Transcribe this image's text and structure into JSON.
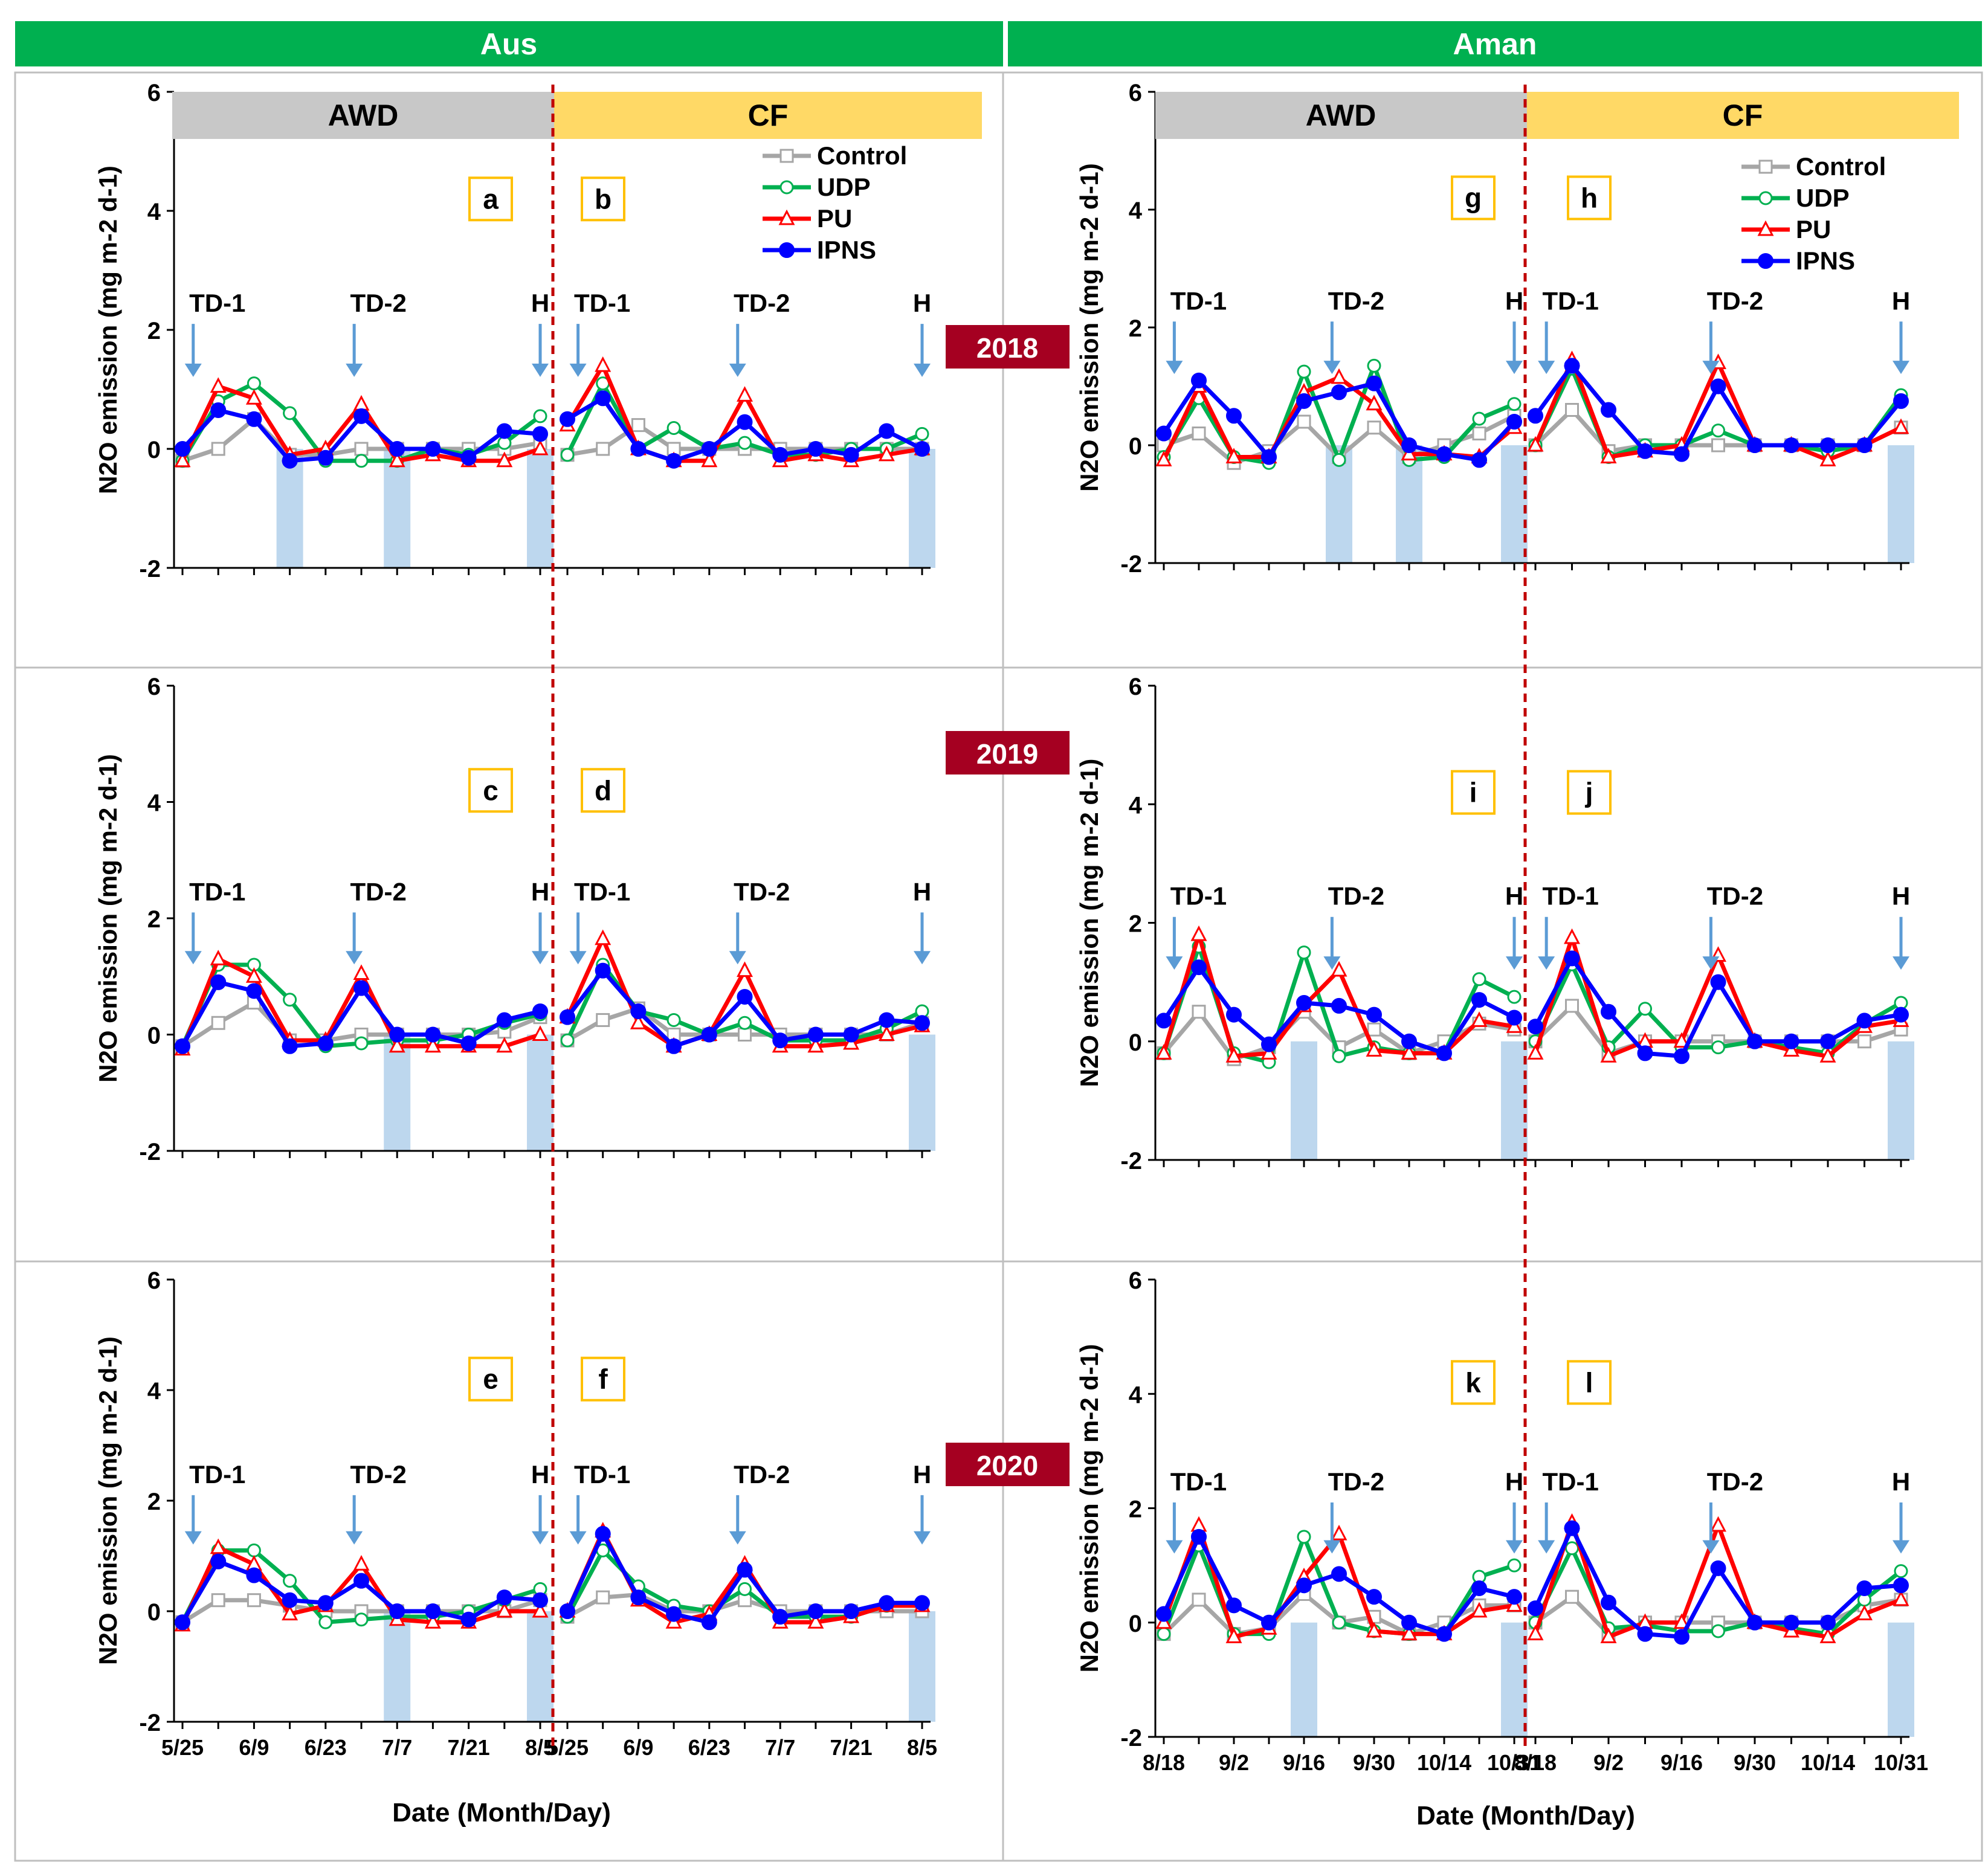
{
  "headers": {
    "aus": "Aus",
    "aman": "Aman"
  },
  "colors": {
    "header_green": "#00b050",
    "awd_gray": "#c8c8c8",
    "cf_yellow": "#ffd966",
    "year_red": "#a50021",
    "arrow_blue": "#5b9bd5",
    "harvest_bar": "#bdd7ee",
    "divider_red": "#c00000",
    "panel_label_border": "#ffc000"
  },
  "water_regimes": {
    "awd": "AWD",
    "cf": "CF"
  },
  "years": [
    "2018",
    "2019",
    "2020"
  ],
  "ylabel": "N2O emission (mg m-2 d-1)",
  "xlabel": "Date (Month/Day)",
  "legend": [
    {
      "name": "Control",
      "color": "#a6a6a6",
      "marker": "square-open"
    },
    {
      "name": "UDP",
      "color": "#00b050",
      "marker": "circle-open"
    },
    {
      "name": "PU",
      "color": "#ff0000",
      "marker": "triangle-open"
    },
    {
      "name": "IPNS",
      "color": "#0000ff",
      "marker": "circle-filled"
    }
  ],
  "event_labels": [
    "TD-1",
    "TD-2",
    "H"
  ],
  "chart_data": [
    {
      "type": "line",
      "season": "Aus",
      "year": "2018",
      "panels": [
        "a",
        "b"
      ],
      "ylim": [
        -2,
        6
      ],
      "yticks": [
        -2,
        0,
        2,
        4,
        6
      ],
      "tick_labels": [
        "5/25",
        "6/9",
        "6/23",
        "7/7",
        "7/21",
        "8/5"
      ],
      "events_awd": [
        "TD-1",
        "TD-2",
        "H"
      ],
      "events_cf": [
        "TD-1",
        "TD-2",
        "H"
      ],
      "shaded_awd": [
        3,
        6,
        10
      ],
      "shaded_cf": [
        10
      ],
      "series": [
        {
          "name": "Control",
          "awd": [
            -0.2,
            0.0,
            0.5,
            -0.1,
            -0.1,
            0.0,
            0.0,
            0.0,
            0.0,
            0.0,
            0.1
          ],
          "cf": [
            -0.1,
            0.0,
            0.4,
            0.0,
            0.0,
            0.0,
            0.0,
            0.0,
            0.0,
            0.0,
            0.0
          ]
        },
        {
          "name": "UDP",
          "awd": [
            -0.2,
            0.8,
            1.1,
            0.6,
            -0.2,
            -0.2,
            -0.2,
            0.0,
            -0.1,
            0.1,
            0.55
          ],
          "cf": [
            -0.1,
            1.1,
            0.0,
            0.35,
            0.0,
            0.1,
            -0.1,
            -0.1,
            0.0,
            0.0,
            0.25
          ]
        },
        {
          "name": "PU",
          "awd": [
            -0.2,
            1.05,
            0.85,
            -0.1,
            0.0,
            0.75,
            -0.2,
            -0.1,
            -0.2,
            -0.2,
            0.0
          ],
          "cf": [
            0.4,
            1.4,
            0.0,
            -0.2,
            -0.2,
            0.9,
            -0.2,
            -0.1,
            -0.2,
            -0.1,
            0.0
          ]
        },
        {
          "name": "IPNS",
          "awd": [
            0.0,
            0.65,
            0.5,
            -0.2,
            -0.15,
            0.55,
            0.0,
            0.0,
            -0.15,
            0.3,
            0.25
          ],
          "cf": [
            0.5,
            0.85,
            0.0,
            -0.2,
            0.0,
            0.45,
            -0.1,
            0.0,
            -0.1,
            0.3,
            0.0
          ]
        }
      ]
    },
    {
      "type": "line",
      "season": "Aus",
      "year": "2019",
      "panels": [
        "c",
        "d"
      ],
      "ylim": [
        -2,
        6
      ],
      "yticks": [
        -2,
        0,
        2,
        4,
        6
      ],
      "tick_labels": [
        "5/25",
        "6/9",
        "6/23",
        "7/7",
        "7/21",
        "8/5"
      ],
      "events_awd": [
        "TD-1",
        "TD-2",
        "H"
      ],
      "events_cf": [
        "TD-1",
        "TD-2",
        "H"
      ],
      "shaded_awd": [
        6,
        10
      ],
      "shaded_cf": [
        10
      ],
      "series": [
        {
          "name": "Control",
          "awd": [
            -0.2,
            0.2,
            0.55,
            -0.1,
            -0.1,
            0.0,
            0.0,
            0.0,
            0.0,
            0.05,
            0.3
          ],
          "cf": [
            -0.1,
            0.25,
            0.45,
            0.0,
            0.0,
            0.0,
            0.0,
            0.0,
            0.0,
            0.0,
            0.2
          ]
        },
        {
          "name": "UDP",
          "awd": [
            -0.2,
            1.2,
            1.2,
            0.6,
            -0.2,
            -0.15,
            -0.1,
            -0.1,
            0.0,
            0.2,
            0.35
          ],
          "cf": [
            -0.1,
            1.2,
            0.4,
            0.25,
            0.0,
            0.2,
            -0.1,
            -0.1,
            -0.1,
            0.1,
            0.4
          ]
        },
        {
          "name": "PU",
          "awd": [
            -0.25,
            1.3,
            1.0,
            -0.1,
            -0.1,
            1.05,
            -0.2,
            -0.2,
            -0.2,
            -0.2,
            0.0
          ],
          "cf": [
            0.3,
            1.65,
            0.2,
            -0.2,
            0.0,
            1.1,
            -0.2,
            -0.2,
            -0.15,
            0.0,
            0.15
          ]
        },
        {
          "name": "IPNS",
          "awd": [
            -0.2,
            0.9,
            0.75,
            -0.2,
            -0.15,
            0.8,
            0.0,
            0.0,
            -0.15,
            0.25,
            0.4
          ],
          "cf": [
            0.3,
            1.1,
            0.4,
            -0.2,
            0.0,
            0.65,
            -0.1,
            0.0,
            0.0,
            0.25,
            0.2
          ]
        }
      ]
    },
    {
      "type": "line",
      "season": "Aus",
      "year": "2020",
      "panels": [
        "e",
        "f"
      ],
      "ylim": [
        -2,
        6
      ],
      "yticks": [
        -2,
        0,
        2,
        4,
        6
      ],
      "tick_labels": [
        "5/25",
        "6/9",
        "6/23",
        "7/7",
        "7/21",
        "8/5"
      ],
      "events_awd": [
        "TD-1",
        "TD-2",
        "H"
      ],
      "events_cf": [
        "TD-1",
        "TD-2",
        "H"
      ],
      "shaded_awd": [
        6,
        10
      ],
      "shaded_cf": [
        10
      ],
      "series": [
        {
          "name": "Control",
          "awd": [
            -0.2,
            0.2,
            0.2,
            0.1,
            0.0,
            0.0,
            0.0,
            0.0,
            0.0,
            0.0,
            0.2
          ],
          "cf": [
            -0.1,
            0.25,
            0.3,
            0.0,
            0.0,
            0.2,
            0.0,
            0.0,
            0.0,
            0.0,
            0.0
          ]
        },
        {
          "name": "UDP",
          "awd": [
            -0.2,
            1.1,
            1.1,
            0.55,
            -0.2,
            -0.15,
            -0.1,
            -0.1,
            0.0,
            0.2,
            0.4
          ],
          "cf": [
            -0.1,
            1.1,
            0.45,
            0.1,
            0.0,
            0.4,
            -0.1,
            -0.1,
            -0.1,
            0.1,
            0.15
          ]
        },
        {
          "name": "PU",
          "awd": [
            -0.25,
            1.15,
            0.85,
            -0.05,
            0.1,
            0.85,
            -0.15,
            -0.2,
            -0.2,
            0.0,
            0.0
          ],
          "cf": [
            0.0,
            1.45,
            0.2,
            -0.2,
            -0.05,
            0.85,
            -0.2,
            -0.2,
            -0.1,
            0.1,
            0.1
          ]
        },
        {
          "name": "IPNS",
          "awd": [
            -0.2,
            0.9,
            0.65,
            0.2,
            0.15,
            0.55,
            0.0,
            0.0,
            -0.15,
            0.25,
            0.2
          ],
          "cf": [
            0.0,
            1.4,
            0.25,
            -0.05,
            -0.2,
            0.75,
            -0.1,
            0.0,
            0.0,
            0.15,
            0.15
          ]
        }
      ]
    },
    {
      "type": "line",
      "season": "Aman",
      "year": "2018",
      "panels": [
        "g",
        "h"
      ],
      "ylim": [
        -2,
        6
      ],
      "yticks": [
        -2,
        0,
        2,
        4,
        6
      ],
      "tick_labels": [
        "8/18",
        "9/2",
        "9/16",
        "9/30",
        "10/14",
        "10/31"
      ],
      "events_awd": [
        "TD-1",
        "TD-2",
        "H"
      ],
      "events_cf": [
        "TD-1",
        "TD-2",
        "H"
      ],
      "shaded_awd": [
        5,
        7,
        10
      ],
      "shaded_cf": [
        10
      ],
      "series": [
        {
          "name": "Control",
          "awd": [
            0.0,
            0.2,
            -0.3,
            -0.1,
            0.4,
            -0.2,
            0.3,
            -0.2,
            0.0,
            0.2,
            0.5
          ],
          "cf": [
            0.0,
            0.6,
            -0.1,
            0.0,
            0.0,
            0.0,
            0.0,
            0.0,
            0.0,
            0.0,
            0.3
          ]
        },
        {
          "name": "UDP",
          "awd": [
            -0.2,
            0.8,
            -0.2,
            -0.3,
            1.25,
            -0.25,
            1.35,
            -0.25,
            -0.2,
            0.45,
            0.7
          ],
          "cf": [
            0.0,
            1.3,
            -0.2,
            0.0,
            0.0,
            0.25,
            0.0,
            0.0,
            -0.1,
            0.0,
            0.85
          ]
        },
        {
          "name": "PU",
          "awd": [
            -0.25,
            1.0,
            -0.2,
            -0.2,
            0.9,
            1.15,
            0.7,
            -0.15,
            -0.15,
            -0.2,
            0.3
          ],
          "cf": [
            0.0,
            1.45,
            -0.2,
            -0.1,
            0.0,
            1.4,
            0.0,
            0.0,
            -0.25,
            0.0,
            0.3
          ]
        },
        {
          "name": "IPNS",
          "awd": [
            0.2,
            1.1,
            0.5,
            -0.2,
            0.75,
            0.9,
            1.05,
            0.0,
            -0.15,
            -0.25,
            0.4
          ],
          "cf": [
            0.5,
            1.35,
            0.6,
            -0.1,
            -0.15,
            1.0,
            0.0,
            0.0,
            0.0,
            0.0,
            0.75
          ]
        }
      ]
    },
    {
      "type": "line",
      "season": "Aman",
      "year": "2019",
      "panels": [
        "i",
        "j"
      ],
      "ylim": [
        -2,
        6
      ],
      "yticks": [
        -2,
        0,
        2,
        4,
        6
      ],
      "tick_labels": [
        "8/18",
        "9/2",
        "9/16",
        "9/30",
        "10/14",
        "10/31"
      ],
      "events_awd": [
        "TD-1",
        "TD-2",
        "H"
      ],
      "events_cf": [
        "TD-1",
        "TD-2",
        "H"
      ],
      "shaded_awd": [
        4,
        10
      ],
      "shaded_cf": [
        10
      ],
      "series": [
        {
          "name": "Control",
          "awd": [
            -0.2,
            0.5,
            -0.3,
            -0.1,
            0.5,
            -0.1,
            0.2,
            -0.2,
            0.0,
            0.3,
            0.2
          ],
          "cf": [
            0.0,
            0.6,
            -0.2,
            0.0,
            0.0,
            0.0,
            0.0,
            0.0,
            0.0,
            0.0,
            0.2
          ]
        },
        {
          "name": "UDP",
          "awd": [
            -0.2,
            1.6,
            -0.2,
            -0.35,
            1.5,
            -0.25,
            -0.1,
            -0.2,
            -0.2,
            1.05,
            0.75
          ],
          "cf": [
            0.0,
            1.3,
            -0.1,
            0.55,
            -0.1,
            -0.1,
            0.0,
            -0.1,
            -0.2,
            0.3,
            0.65
          ]
        },
        {
          "name": "PU",
          "awd": [
            -0.2,
            1.8,
            -0.25,
            -0.2,
            0.6,
            1.2,
            -0.15,
            -0.2,
            -0.2,
            0.35,
            0.25
          ],
          "cf": [
            -0.2,
            1.75,
            -0.25,
            0.0,
            0.0,
            1.45,
            0.0,
            -0.15,
            -0.25,
            0.25,
            0.35
          ]
        },
        {
          "name": "IPNS",
          "awd": [
            0.35,
            1.25,
            0.45,
            -0.05,
            0.65,
            0.6,
            0.45,
            0.0,
            -0.2,
            0.7,
            0.4
          ],
          "cf": [
            0.25,
            1.4,
            0.5,
            -0.2,
            -0.25,
            1.0,
            0.0,
            0.0,
            0.0,
            0.35,
            0.45
          ]
        }
      ]
    },
    {
      "type": "line",
      "season": "Aman",
      "year": "2020",
      "panels": [
        "k",
        "l"
      ],
      "ylim": [
        -2,
        6
      ],
      "yticks": [
        -2,
        0,
        2,
        4,
        6
      ],
      "tick_labels": [
        "8/18",
        "9/2",
        "9/16",
        "9/30",
        "10/14",
        "10/31"
      ],
      "events_awd": [
        "TD-1",
        "TD-2",
        "H"
      ],
      "events_cf": [
        "TD-1",
        "TD-2",
        "H"
      ],
      "shaded_awd": [
        4,
        10
      ],
      "shaded_cf": [
        10
      ],
      "series": [
        {
          "name": "Control",
          "awd": [
            -0.2,
            0.4,
            -0.2,
            -0.1,
            0.5,
            0.0,
            0.1,
            -0.2,
            0.0,
            0.3,
            0.3
          ],
          "cf": [
            0.0,
            0.45,
            -0.2,
            0.0,
            0.0,
            0.0,
            0.0,
            0.0,
            0.0,
            0.3,
            0.4
          ]
        },
        {
          "name": "UDP",
          "awd": [
            -0.2,
            1.35,
            -0.2,
            -0.2,
            1.5,
            0.0,
            -0.15,
            -0.2,
            -0.2,
            0.8,
            1.0
          ],
          "cf": [
            0.0,
            1.3,
            -0.1,
            -0.05,
            -0.15,
            -0.15,
            0.0,
            -0.1,
            -0.2,
            0.4,
            0.9
          ]
        },
        {
          "name": "PU",
          "awd": [
            0.0,
            1.7,
            -0.25,
            -0.1,
            0.8,
            1.55,
            -0.15,
            -0.2,
            -0.2,
            0.2,
            0.3
          ],
          "cf": [
            -0.2,
            1.75,
            -0.25,
            0.0,
            0.0,
            1.7,
            0.0,
            -0.15,
            -0.25,
            0.15,
            0.4
          ]
        },
        {
          "name": "IPNS",
          "awd": [
            0.15,
            1.5,
            0.3,
            0.0,
            0.65,
            0.85,
            0.45,
            0.0,
            -0.2,
            0.6,
            0.45
          ],
          "cf": [
            0.25,
            1.65,
            0.35,
            -0.2,
            -0.25,
            0.95,
            0.0,
            0.0,
            0.0,
            0.6,
            0.65
          ]
        }
      ]
    }
  ]
}
